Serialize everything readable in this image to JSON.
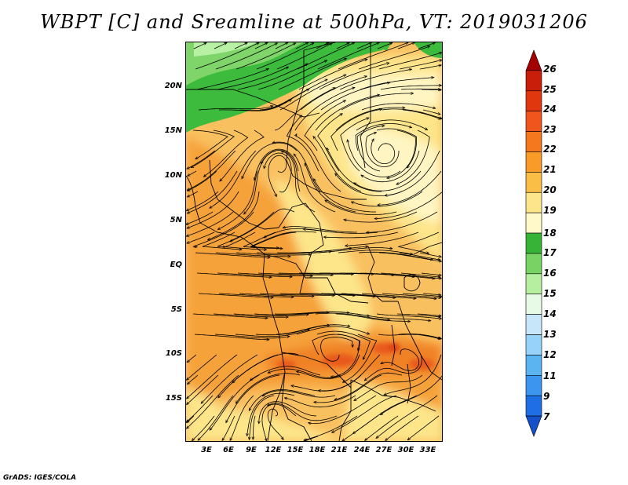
{
  "title": "WBPT [C] and Sreamline at 500hPa, VT: 2019031206",
  "credit": "GrADS: IGES/COLA",
  "map": {
    "lat_labels": [
      "20N",
      "15N",
      "10N",
      "5N",
      "EQ",
      "5S",
      "10S",
      "15S"
    ],
    "lon_labels": [
      "3E",
      "6E",
      "9E",
      "12E",
      "15E",
      "18E",
      "21E",
      "24E",
      "27E",
      "30E",
      "33E"
    ]
  },
  "colorbar": {
    "labels": [
      "26",
      "25",
      "24",
      "23",
      "22",
      "21",
      "20",
      "19",
      "18",
      "17",
      "16",
      "15",
      "14",
      "13",
      "12",
      "11",
      "9",
      "7"
    ],
    "colors": [
      "#a50000",
      "#c81e0a",
      "#e1370f",
      "#f0551e",
      "#f5781e",
      "#f89b28",
      "#fabe46",
      "#fde68a",
      "#fff8c8",
      "#37b437",
      "#78d264",
      "#b4f0a0",
      "#e6fae6",
      "#c8e6fa",
      "#96d2fa",
      "#5ab4f0",
      "#3c96f0",
      "#1e6ee6",
      "#1450c8"
    ]
  },
  "palette": {
    "green_dark": "#3dbb3d",
    "green_mid": "#7fd46a",
    "green_light": "#b8f0a4",
    "yellow_pale": "#fff5c2",
    "yellow": "#fde58a",
    "orange_light": "#f9c060",
    "orange": "#f6a23a",
    "orange_dark": "#f08228",
    "red_orange": "#e95a1e",
    "red": "#dc3a14"
  }
}
